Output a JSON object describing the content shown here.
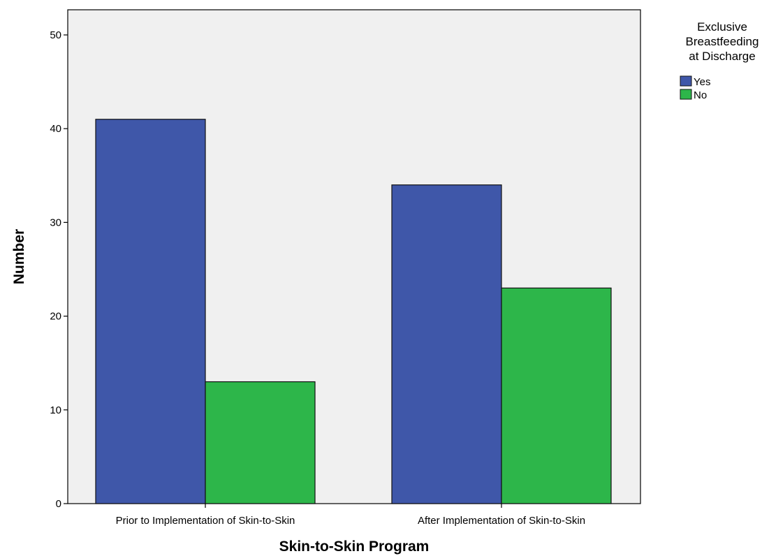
{
  "chart_data": {
    "type": "bar",
    "categories": [
      "Prior to Implementation of Skin-to-Skin",
      "After Implementation of Skin-to-Skin"
    ],
    "series": [
      {
        "name": "Yes",
        "values": [
          41,
          34
        ],
        "color": "#3f57a9"
      },
      {
        "name": "No",
        "values": [
          13,
          23
        ],
        "color": "#2db64a"
      }
    ],
    "xlabel": "Skin-to-Skin Program",
    "ylabel": "Number",
    "ylim": [
      0,
      50
    ],
    "yticks": [
      0,
      10,
      20,
      30,
      40,
      50
    ],
    "grid": false,
    "plot_background": "#f0f0f0",
    "legend": {
      "title_lines": [
        "Exclusive",
        "Breastfeeding",
        "at Discharge"
      ],
      "placement": "right-top"
    }
  }
}
